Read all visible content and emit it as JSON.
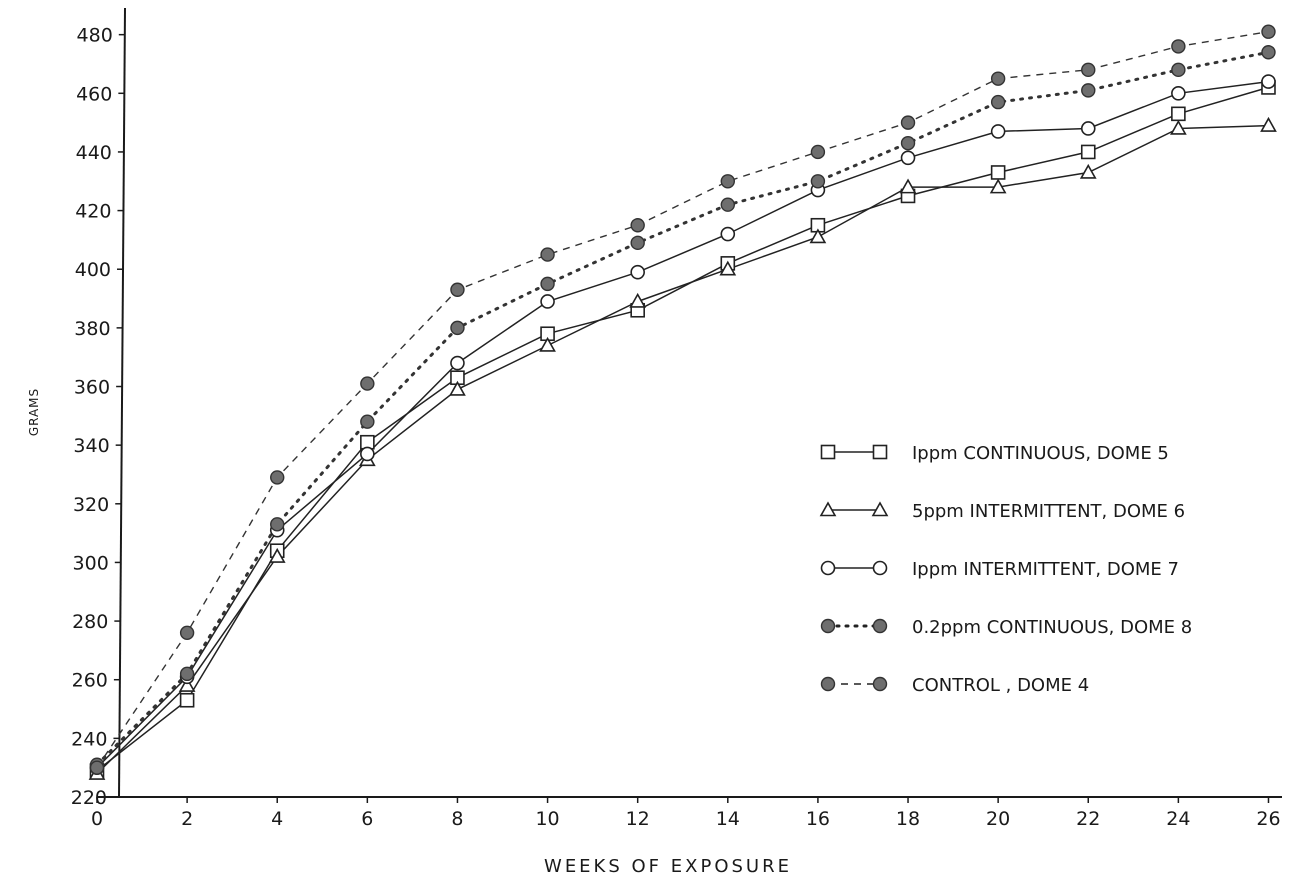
{
  "chart_data": {
    "type": "line",
    "title": "",
    "xlabel": "WEEKS OF EXPOSURE",
    "ylabel": "GRAMS",
    "xlim": [
      0,
      26.3
    ],
    "ylim": [
      220,
      485
    ],
    "x_ticks": [
      0,
      2,
      4,
      6,
      8,
      10,
      12,
      14,
      16,
      18,
      20,
      22,
      24,
      26
    ],
    "y_ticks": [
      220,
      240,
      260,
      280,
      300,
      320,
      340,
      360,
      380,
      400,
      420,
      440,
      460,
      480
    ],
    "grid": false,
    "legend_position": "right",
    "series": [
      {
        "name": "Ippm CONTINUOUS, DOME 5",
        "marker": "square",
        "line_style": "solid",
        "color": "#222222",
        "x": [
          0,
          2,
          4,
          6,
          8,
          10,
          12,
          14,
          16,
          18,
          20,
          22,
          24,
          26
        ],
        "y": [
          229,
          253,
          304,
          341,
          363,
          378,
          386,
          402,
          415,
          425,
          433,
          440,
          453,
          462
        ]
      },
      {
        "name": "5ppm INTERMITTENT, DOME 6",
        "marker": "triangle",
        "line_style": "solid",
        "color": "#222222",
        "x": [
          0,
          2,
          4,
          6,
          8,
          10,
          12,
          14,
          16,
          18,
          20,
          22,
          24,
          26
        ],
        "y": [
          228,
          258,
          302,
          335,
          359,
          374,
          389,
          400,
          411,
          428,
          428,
          433,
          448,
          449
        ]
      },
      {
        "name": "Ippm INTERMITTENT, DOME 7",
        "marker": "circle",
        "line_style": "solid",
        "color": "#222222",
        "x": [
          0,
          2,
          4,
          6,
          8,
          10,
          12,
          14,
          16,
          18,
          20,
          22,
          24,
          26
        ],
        "y": [
          230,
          261,
          311,
          337,
          368,
          389,
          399,
          412,
          427,
          438,
          447,
          448,
          460,
          464
        ]
      },
      {
        "name": "0.2ppm CONTINUOUS, DOME 8",
        "marker": "filled-circle",
        "line_style": "cross-dotted",
        "color": "#333333",
        "x": [
          0,
          2,
          4,
          6,
          8,
          10,
          12,
          14,
          16,
          18,
          20,
          22,
          24,
          26
        ],
        "y": [
          231,
          262,
          313,
          348,
          380,
          395,
          409,
          422,
          430,
          443,
          457,
          461,
          468,
          474
        ]
      },
      {
        "name": "CONTROL, DOME 4",
        "marker": "filled-circle",
        "line_style": "dashed",
        "color": "#333333",
        "x": [
          0,
          2,
          4,
          6,
          8,
          10,
          12,
          14,
          16,
          18,
          20,
          22,
          24,
          26
        ],
        "y": [
          230,
          276,
          329,
          361,
          393,
          405,
          415,
          430,
          440,
          450,
          465,
          468,
          476,
          481
        ]
      }
    ]
  },
  "legend": {
    "items": [
      {
        "label": "Ippm CONTINUOUS, DOME 5"
      },
      {
        "label": "5ppm INTERMITTENT, DOME 6"
      },
      {
        "label": "Ippm INTERMITTENT, DOME 7"
      },
      {
        "label": "0.2ppm CONTINUOUS, DOME 8"
      },
      {
        "label": "CONTROL , DOME 4"
      }
    ]
  }
}
